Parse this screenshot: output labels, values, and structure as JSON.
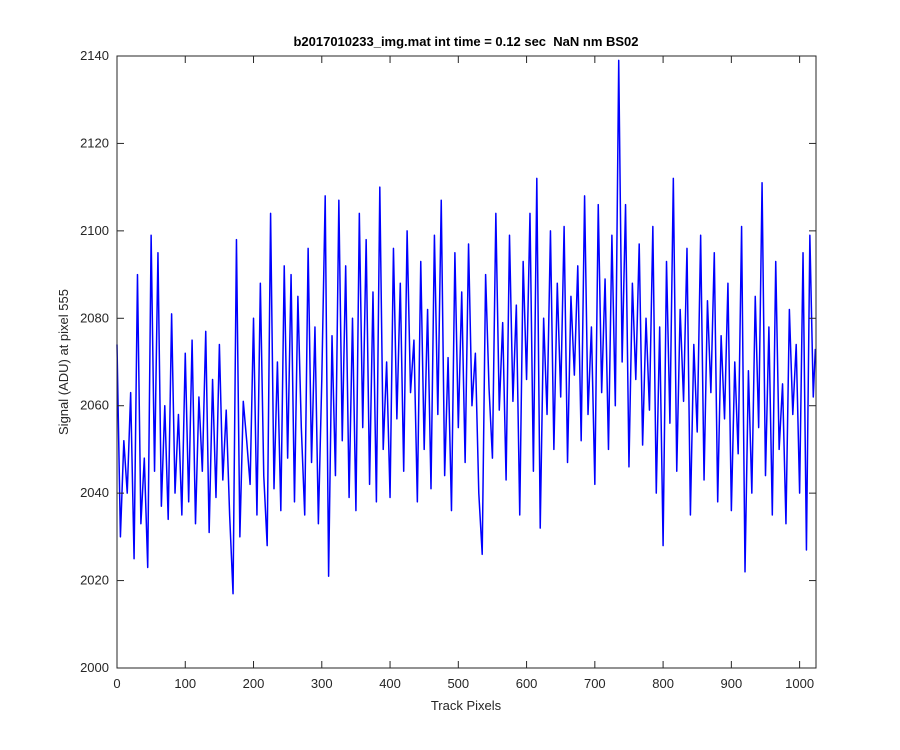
{
  "chart_data": {
    "type": "line",
    "title": "b2017010233_img.mat int time = 0.12 sec  NaN nm BS02",
    "x_label": "Track Pixels",
    "y_label": "Signal (ADU) at pixel 555",
    "xlim": [
      0,
      1024
    ],
    "ylim": [
      2000,
      2140
    ],
    "xticks": [
      0,
      100,
      200,
      300,
      400,
      500,
      600,
      700,
      800,
      900,
      1000
    ],
    "yticks": [
      2000,
      2020,
      2040,
      2060,
      2080,
      2100,
      2120,
      2140
    ],
    "grid": false,
    "x": [
      0,
      5,
      10,
      15,
      20,
      25,
      30,
      35,
      40,
      45,
      50,
      55,
      60,
      65,
      70,
      75,
      80,
      85,
      90,
      95,
      100,
      105,
      110,
      115,
      120,
      125,
      130,
      135,
      140,
      145,
      150,
      155,
      160,
      165,
      170,
      175,
      180,
      185,
      190,
      195,
      200,
      205,
      210,
      215,
      220,
      225,
      230,
      235,
      240,
      245,
      250,
      255,
      260,
      265,
      270,
      275,
      280,
      285,
      290,
      295,
      300,
      305,
      310,
      315,
      320,
      325,
      330,
      335,
      340,
      345,
      350,
      355,
      360,
      365,
      370,
      375,
      380,
      385,
      390,
      395,
      400,
      405,
      410,
      415,
      420,
      425,
      430,
      435,
      440,
      445,
      450,
      455,
      460,
      465,
      470,
      475,
      480,
      485,
      490,
      495,
      500,
      505,
      510,
      515,
      520,
      525,
      530,
      535,
      540,
      545,
      550,
      555,
      560,
      565,
      570,
      575,
      580,
      585,
      590,
      595,
      600,
      605,
      610,
      615,
      620,
      625,
      630,
      635,
      640,
      645,
      650,
      655,
      660,
      665,
      670,
      675,
      680,
      685,
      690,
      695,
      700,
      705,
      710,
      715,
      720,
      725,
      730,
      735,
      740,
      745,
      750,
      755,
      760,
      765,
      770,
      775,
      780,
      785,
      790,
      795,
      800,
      805,
      810,
      815,
      820,
      825,
      830,
      835,
      840,
      845,
      850,
      855,
      860,
      865,
      870,
      875,
      880,
      885,
      890,
      895,
      900,
      905,
      910,
      915,
      920,
      925,
      930,
      935,
      940,
      945,
      950,
      955,
      960,
      965,
      970,
      975,
      980,
      985,
      990,
      995,
      1000,
      1005,
      1010,
      1015,
      1020,
      1023
    ],
    "series": [
      {
        "color": "#0000ff",
        "values": [
          2074,
          2030,
          2052,
          2040,
          2063,
          2025,
          2090,
          2033,
          2048,
          2023,
          2099,
          2045,
          2095,
          2037,
          2060,
          2034,
          2081,
          2040,
          2058,
          2035,
          2072,
          2038,
          2075,
          2033,
          2062,
          2045,
          2077,
          2031,
          2066,
          2039,
          2074,
          2043,
          2059,
          2035,
          2017,
          2098,
          2030,
          2061,
          2052,
          2042,
          2080,
          2035,
          2088,
          2044,
          2028,
          2104,
          2041,
          2070,
          2036,
          2092,
          2048,
          2090,
          2038,
          2085,
          2055,
          2035,
          2096,
          2047,
          2078,
          2033,
          2066,
          2108,
          2021,
          2076,
          2044,
          2107,
          2052,
          2092,
          2039,
          2080,
          2036,
          2104,
          2055,
          2098,
          2042,
          2086,
          2038,
          2110,
          2050,
          2070,
          2039,
          2096,
          2057,
          2088,
          2045,
          2100,
          2063,
          2075,
          2038,
          2093,
          2050,
          2082,
          2041,
          2099,
          2058,
          2107,
          2044,
          2071,
          2036,
          2095,
          2055,
          2086,
          2047,
          2097,
          2060,
          2072,
          2040,
          2026,
          2090,
          2064,
          2048,
          2104,
          2059,
          2079,
          2043,
          2099,
          2061,
          2083,
          2035,
          2093,
          2066,
          2104,
          2045,
          2112,
          2032,
          2080,
          2058,
          2100,
          2050,
          2088,
          2062,
          2101,
          2047,
          2085,
          2067,
          2092,
          2052,
          2108,
          2058,
          2078,
          2042,
          2106,
          2063,
          2089,
          2050,
          2099,
          2060,
          2139,
          2070,
          2106,
          2046,
          2088,
          2066,
          2097,
          2051,
          2080,
          2059,
          2101,
          2040,
          2078,
          2028,
          2093,
          2056,
          2112,
          2045,
          2082,
          2061,
          2096,
          2035,
          2074,
          2054,
          2099,
          2043,
          2084,
          2063,
          2095,
          2038,
          2076,
          2057,
          2088,
          2036,
          2070,
          2049,
          2101,
          2022,
          2068,
          2040,
          2085,
          2055,
          2111,
          2044,
          2078,
          2035,
          2093,
          2050,
          2065,
          2033,
          2082,
          2058,
          2074,
          2040,
          2095,
          2027,
          2099,
          2062,
          2073
        ]
      }
    ]
  }
}
